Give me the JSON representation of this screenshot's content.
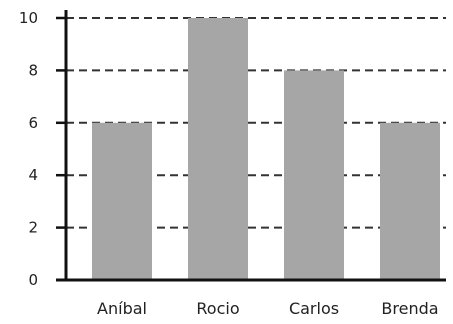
{
  "chart_data": {
    "type": "bar",
    "categories": [
      "Aníbal",
      "Rocio",
      "Carlos",
      "Brenda"
    ],
    "values": [
      6,
      10,
      8,
      6
    ],
    "title": "",
    "xlabel": "",
    "ylabel": "",
    "ylim": [
      0,
      10
    ],
    "yticks": [
      0,
      2,
      4,
      6,
      8,
      10
    ],
    "grid": "horizontal-dashed",
    "legend": "none",
    "colors": {
      "bar": "#a6a6a6",
      "grid": "#333333",
      "axis": "#111111",
      "text": "#222222"
    }
  }
}
